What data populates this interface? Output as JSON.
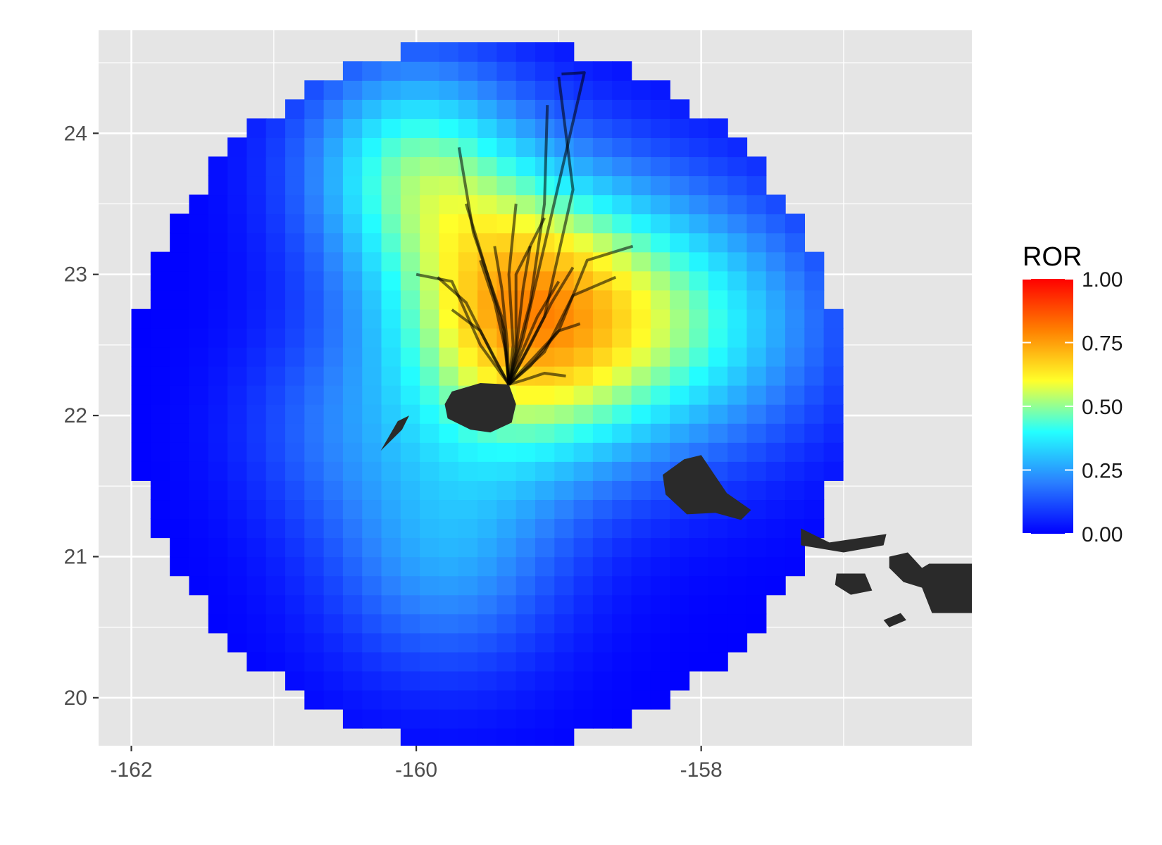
{
  "chart_data": {
    "type": "heatmap",
    "title": "",
    "xlabel": "",
    "ylabel": "",
    "x_ticks": [
      "-162",
      "-160",
      "-158"
    ],
    "y_ticks": [
      "20",
      "21",
      "22",
      "23",
      "24"
    ],
    "xlim": [
      -162.23,
      -156.1
    ],
    "ylim": [
      19.66,
      24.73
    ],
    "grid": true,
    "colorscale": [
      "#0000ff",
      "#2a7fff",
      "#24ffff",
      "#ffff2a",
      "#ff7f00",
      "#ff0000"
    ],
    "field": {
      "center": [
        -159.5,
        22.15
      ],
      "radius_deg": 2.5,
      "cell_deg": 0.135,
      "peak": [
        -159.2,
        22.7
      ]
    },
    "legend": {
      "title": "ROR",
      "position": "right",
      "breaks": [
        "0.00",
        "0.25",
        "0.50",
        "0.75",
        "1.00"
      ],
      "range": [
        0,
        1
      ]
    },
    "tracks_origin": [
      -159.35,
      22.22
    ],
    "track_color": "#000000",
    "land_color": "#2a2a2a",
    "background_color": "#e5e5e5"
  }
}
